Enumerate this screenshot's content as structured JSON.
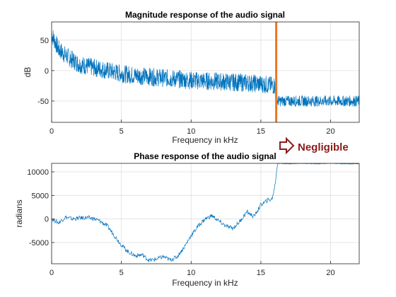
{
  "chart_data": [
    {
      "type": "line",
      "title": "Magnitude response of the audio signal",
      "xlabel": "Frequency in kHz",
      "ylabel": "dB",
      "xlim": [
        0,
        22.05
      ],
      "ylim": [
        -85,
        80
      ],
      "xticks": [
        0,
        5,
        10,
        15,
        20
      ],
      "yticks": [
        -50,
        0,
        50
      ],
      "grid": true,
      "series": [
        {
          "color": "#0072bd",
          "x": [
            0,
            0.5,
            1,
            2,
            3,
            4,
            5,
            6,
            7,
            8,
            9,
            10,
            11,
            12,
            13,
            14,
            15,
            16,
            16.1,
            17,
            18,
            19,
            20,
            21,
            22.05
          ],
          "y": [
            60,
            35,
            25,
            10,
            5,
            0,
            -5,
            -8,
            -10,
            -12,
            -14,
            -16,
            -17,
            -18,
            -19,
            -20,
            -22,
            -25,
            -50,
            -50,
            -50,
            -50,
            -50,
            -50,
            -50
          ]
        }
      ],
      "vertical_line": {
        "x": 16.1,
        "color": "#e87722"
      },
      "annotation": {
        "text": "Negligible",
        "color": "#8b1a1a"
      }
    },
    {
      "type": "line",
      "title": "Phase response of the audio signal",
      "xlabel": "Frequency in kHz",
      "ylabel": "radians",
      "xlim": [
        0,
        22.05
      ],
      "ylim": [
        -9500,
        11800
      ],
      "xticks": [
        0,
        5,
        10,
        15,
        20
      ],
      "yticks": [
        -5000,
        0,
        5000,
        10000
      ],
      "grid": true,
      "series": [
        {
          "color": "#0072bd",
          "x": [
            0,
            0.5,
            1,
            1.5,
            2,
            2.5,
            3,
            3.5,
            4,
            4.5,
            5,
            5.5,
            6,
            6.5,
            7,
            7.5,
            8,
            8.5,
            9,
            9.5,
            10,
            10.5,
            11,
            11.5,
            12,
            12.5,
            13,
            13.5,
            14,
            14.5,
            15,
            15.5,
            15.8,
            16,
            16.2,
            17,
            18,
            19,
            20,
            21,
            22.05
          ],
          "y": [
            0,
            -800,
            400,
            0,
            200,
            300,
            100,
            -500,
            -1500,
            -3500,
            -5500,
            -7000,
            -7800,
            -7600,
            -8800,
            -8500,
            -8000,
            -8700,
            -8000,
            -6000,
            -3500,
            -1500,
            0,
            700,
            -500,
            -1500,
            -2000,
            -500,
            1500,
            500,
            3000,
            4000,
            4200,
            7000,
            11800,
            11700,
            11800,
            11700,
            11800,
            11700,
            11700
          ]
        }
      ]
    }
  ]
}
